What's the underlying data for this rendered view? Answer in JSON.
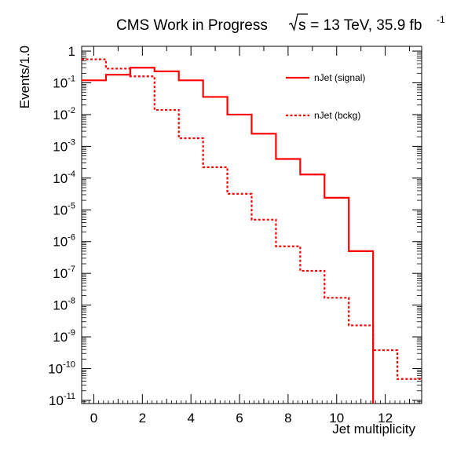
{
  "chart_data": {
    "type": "line",
    "drawstyle": "step",
    "title_main": "CMS Work in Progress",
    "title_sqrt": "s",
    "title_energy": " = 13 TeV, 35.9 fb",
    "title_sup": "-1",
    "xlabel": "Jet multiplicity",
    "ylabel": "Events/1.0",
    "xlim": [
      -0.5,
      13.5
    ],
    "ylim_exponent": [
      -11.1,
      0.15
    ],
    "yscale": "log",
    "grid": false,
    "legend_position": "top-right",
    "x_ticks": [
      {
        "value": 0,
        "label": "0"
      },
      {
        "value": 2,
        "label": "2"
      },
      {
        "value": 4,
        "label": "4"
      },
      {
        "value": 6,
        "label": "6"
      },
      {
        "value": 8,
        "label": "8"
      },
      {
        "value": 10,
        "label": "10"
      },
      {
        "value": 12,
        "label": "12"
      }
    ],
    "y_ticks": [
      {
        "exp": 0,
        "base": "1",
        "sup": ""
      },
      {
        "exp": -1,
        "base": "10",
        "sup": "-1"
      },
      {
        "exp": -2,
        "base": "10",
        "sup": "-2"
      },
      {
        "exp": -3,
        "base": "10",
        "sup": "-3"
      },
      {
        "exp": -4,
        "base": "10",
        "sup": "-4"
      },
      {
        "exp": -5,
        "base": "10",
        "sup": "-5"
      },
      {
        "exp": -6,
        "base": "10",
        "sup": "-6"
      },
      {
        "exp": -7,
        "base": "10",
        "sup": "-7"
      },
      {
        "exp": -8,
        "base": "10",
        "sup": "-8"
      },
      {
        "exp": -9,
        "base": "10",
        "sup": "-9"
      },
      {
        "exp": -10,
        "base": "10",
        "sup": "-10"
      },
      {
        "exp": -11,
        "base": "10",
        "sup": "-11"
      }
    ],
    "bin_edges": [
      -0.5,
      0.5,
      1.5,
      2.5,
      3.5,
      4.5,
      5.5,
      6.5,
      7.5,
      8.5,
      9.5,
      10.5,
      11.5,
      12.5,
      13.5
    ],
    "series": [
      {
        "name": "nJet (signal)",
        "color": "#ff0000",
        "linestyle": "solid",
        "values": [
          0.12,
          0.18,
          0.3,
          0.23,
          0.12,
          0.036,
          0.01,
          0.0025,
          0.0004,
          0.00013,
          2.4e-05,
          5e-07,
          0,
          0
        ]
      },
      {
        "name": "nJet (bckg)",
        "color": "#ff0000",
        "linestyle": "dotted",
        "values": [
          0.55,
          0.28,
          0.16,
          0.014,
          0.0018,
          0.00022,
          3.2e-05,
          4.9e-06,
          7.1e-07,
          1.2e-07,
          1.7e-08,
          2.3e-09,
          3.8e-10,
          4.7e-11
        ]
      }
    ]
  }
}
